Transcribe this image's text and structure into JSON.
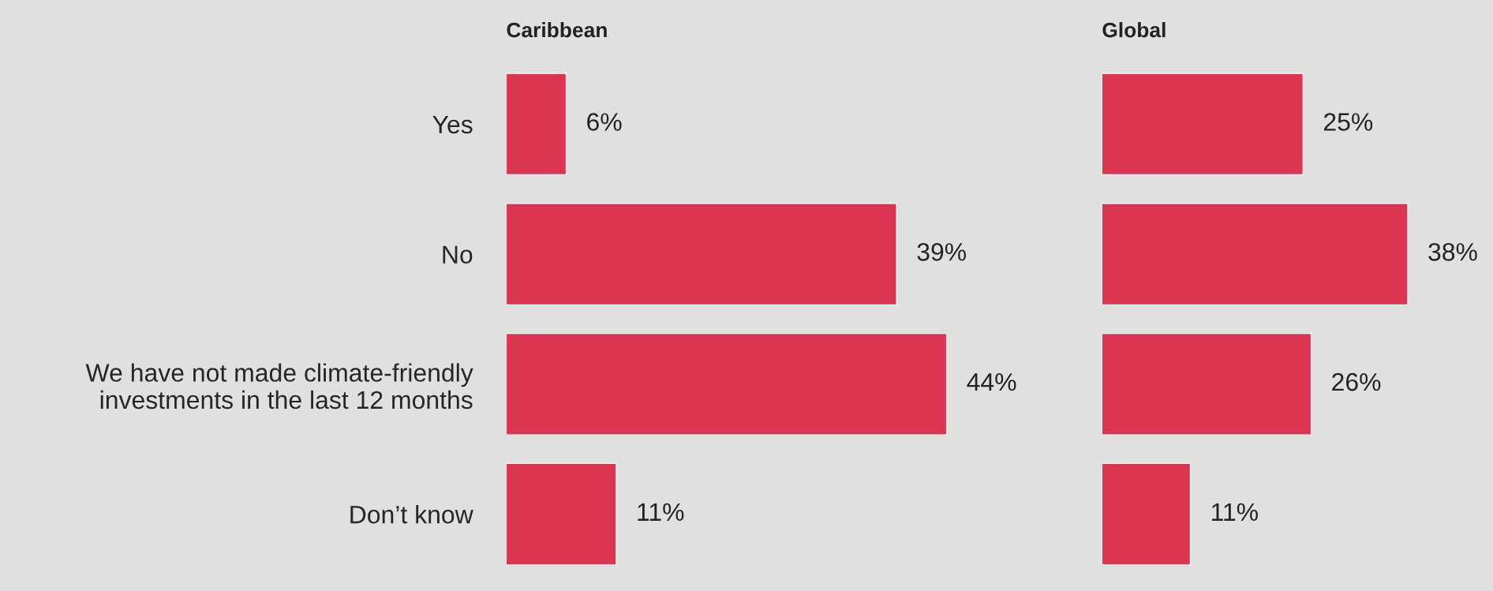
{
  "chart_data": [
    {
      "type": "bar",
      "orientation": "horizontal",
      "title": "Caribbean",
      "categories": [
        "Yes",
        "No",
        "We have not made climate-friendly\ninvestments in the last 12 months",
        "Don’t know"
      ],
      "values": [
        6,
        39,
        44,
        11
      ],
      "color": "#db3552",
      "value_labels": [
        "6%",
        "39%",
        "44%",
        "11%"
      ],
      "tick_labels": "y"
    },
    {
      "type": "bar",
      "orientation": "horizontal",
      "title": "Global",
      "categories": [
        null,
        null,
        null,
        null
      ],
      "values": [
        25,
        38,
        26,
        11
      ],
      "color": "#db3552",
      "value_labels": [
        "25%",
        "38%",
        "26%",
        "11%"
      ],
      "tick_labels": false
    }
  ]
}
